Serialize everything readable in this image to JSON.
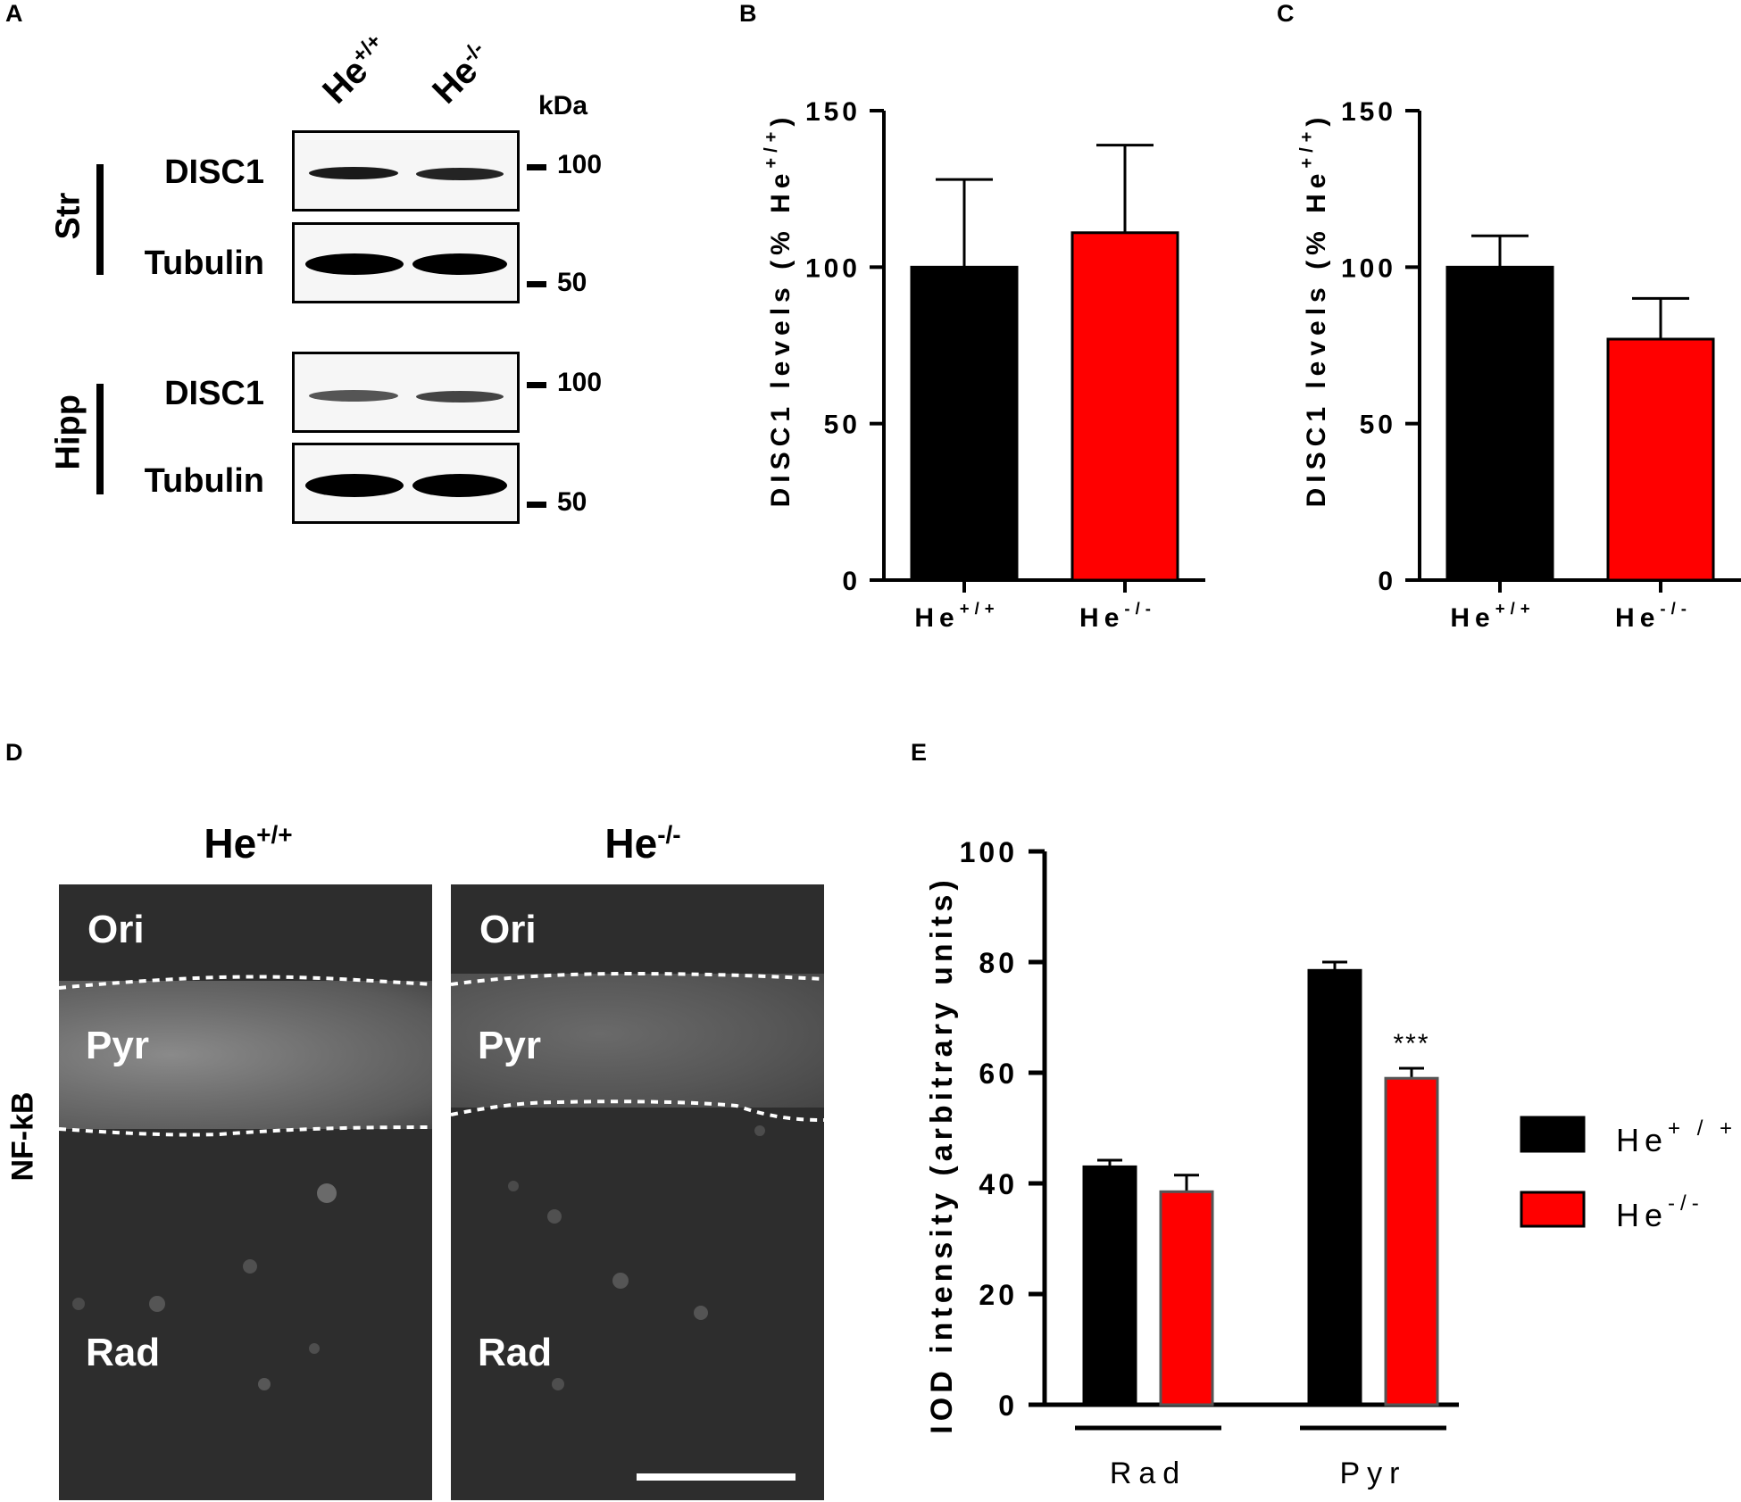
{
  "panels": {
    "A": {
      "letter": "A",
      "lanes": [
        "He",
        "He"
      ],
      "lane_sups": [
        "+/+",
        "-/-"
      ],
      "kda_title": "kDa",
      "groups": [
        "Str",
        "Hipp"
      ],
      "rows": [
        "DISC1",
        "Tubulin",
        "DISC1",
        "Tubulin"
      ],
      "markers": [
        "100",
        "50",
        "100",
        "50"
      ]
    },
    "B": {
      "letter": "B"
    },
    "C": {
      "letter": "C"
    },
    "D": {
      "letter": "D",
      "columns": [
        "He",
        "He"
      ],
      "column_sups": [
        "+/+",
        "-/-"
      ],
      "side_label": "NF-kB",
      "regions": [
        "Ori",
        "Pyr",
        "Rad"
      ]
    },
    "E": {
      "letter": "E"
    }
  },
  "colors": {
    "wt": "#000000",
    "ko": "#ff0000",
    "micro_bg": "#2e2e2e"
  },
  "chart_data": [
    {
      "id": "B",
      "type": "bar",
      "categories": [
        "He",
        "He"
      ],
      "category_sups": [
        "+/+",
        "-/-"
      ],
      "values": [
        100,
        111
      ],
      "errors": [
        28,
        28
      ],
      "colors": [
        "#000000",
        "#ff0000"
      ],
      "ylabel": "DISC1 levels (% He",
      "ylabel_sup": "+/+",
      "ylabel_close": ")",
      "ylim": [
        0,
        150
      ],
      "yticks": [
        0,
        50,
        100,
        150
      ]
    },
    {
      "id": "C",
      "type": "bar",
      "categories": [
        "He",
        "He"
      ],
      "category_sups": [
        "+/+",
        "-/-"
      ],
      "values": [
        100,
        77
      ],
      "errors": [
        10,
        13
      ],
      "colors": [
        "#000000",
        "#ff0000"
      ],
      "ylabel": "DISC1 levels (% He",
      "ylabel_sup": "+/+",
      "ylabel_close": ")",
      "ylim": [
        0,
        150
      ],
      "yticks": [
        0,
        50,
        100,
        150
      ]
    },
    {
      "id": "E",
      "type": "bar",
      "categories": [
        "Rad",
        "Pyr"
      ],
      "series": [
        {
          "name": "He",
          "sup": "+ / +",
          "values": [
            43,
            78.5
          ],
          "errors": [
            1.2,
            1.5
          ],
          "color": "#000000"
        },
        {
          "name": "He",
          "sup": "-/-",
          "values": [
            38.5,
            59
          ],
          "errors": [
            3,
            1.8
          ],
          "color": "#ff0000"
        }
      ],
      "annotation": "***",
      "ylabel": "IOD intensity (arbitrary units)",
      "ylim": [
        0,
        100
      ],
      "yticks": [
        0,
        20,
        40,
        60,
        80,
        100
      ],
      "legend": "right"
    }
  ]
}
